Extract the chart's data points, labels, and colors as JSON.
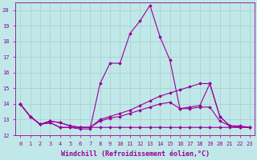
{
  "xlabel": "Windchill (Refroidissement éolien,°C)",
  "bg_color": "#c0e8e8",
  "line_color": "#990099",
  "grid_color": "#b0d0d0",
  "xlim": [
    -0.5,
    23.5
  ],
  "ylim": [
    12,
    20.5
  ],
  "yticks": [
    12,
    13,
    14,
    15,
    16,
    17,
    18,
    19,
    20
  ],
  "xticks": [
    0,
    1,
    2,
    3,
    4,
    5,
    6,
    7,
    8,
    9,
    10,
    11,
    12,
    13,
    14,
    15,
    16,
    17,
    18,
    19,
    20,
    21,
    22,
    23
  ],
  "series": [
    {
      "x": [
        0,
        1,
        2,
        3,
        4,
        5,
        6,
        7,
        8,
        9,
        10,
        11,
        12,
        13,
        14,
        15,
        16,
        17,
        18,
        19,
        20,
        21,
        22
      ],
      "y": [
        14.0,
        13.2,
        12.7,
        12.8,
        12.5,
        12.5,
        12.4,
        12.4,
        15.3,
        16.6,
        16.6,
        18.5,
        19.3,
        20.3,
        18.3,
        16.8,
        13.7,
        13.8,
        13.9,
        15.3,
        13.2,
        12.6,
        12.5
      ]
    },
    {
      "x": [
        0,
        1,
        2,
        3,
        4,
        5,
        6,
        7,
        8,
        9,
        10,
        11,
        12,
        13,
        14,
        15,
        16,
        17,
        18,
        19,
        20,
        21,
        22,
        23
      ],
      "y": [
        14.0,
        13.2,
        12.7,
        12.9,
        12.8,
        12.6,
        12.5,
        12.5,
        13.0,
        13.2,
        13.4,
        13.6,
        13.9,
        14.2,
        14.5,
        14.7,
        14.9,
        15.1,
        15.3,
        15.3,
        13.2,
        12.6,
        12.6,
        12.5
      ]
    },
    {
      "x": [
        0,
        1,
        2,
        3,
        4,
        5,
        6,
        7,
        8,
        9,
        10,
        11,
        12,
        13,
        14,
        15,
        16,
        17,
        18,
        19,
        20,
        21,
        22,
        23
      ],
      "y": [
        14.0,
        13.2,
        12.7,
        12.9,
        12.8,
        12.6,
        12.5,
        12.5,
        12.9,
        13.1,
        13.2,
        13.4,
        13.6,
        13.8,
        14.0,
        14.1,
        13.7,
        13.7,
        13.8,
        13.8,
        12.9,
        12.6,
        12.5,
        12.5
      ]
    },
    {
      "x": [
        0,
        1,
        2,
        3,
        4,
        5,
        6,
        7,
        8,
        9,
        10,
        11,
        12,
        13,
        14,
        15,
        16,
        17,
        18,
        19,
        20,
        21,
        22,
        23
      ],
      "y": [
        14.0,
        13.2,
        12.7,
        12.8,
        12.5,
        12.5,
        12.5,
        12.5,
        12.5,
        12.5,
        12.5,
        12.5,
        12.5,
        12.5,
        12.5,
        12.5,
        12.5,
        12.5,
        12.5,
        12.5,
        12.5,
        12.5,
        12.5,
        12.5
      ]
    }
  ],
  "marker": "D",
  "markersize": 1.8,
  "linewidth": 0.8,
  "tick_fontsize": 5.0,
  "label_fontsize": 6.0
}
